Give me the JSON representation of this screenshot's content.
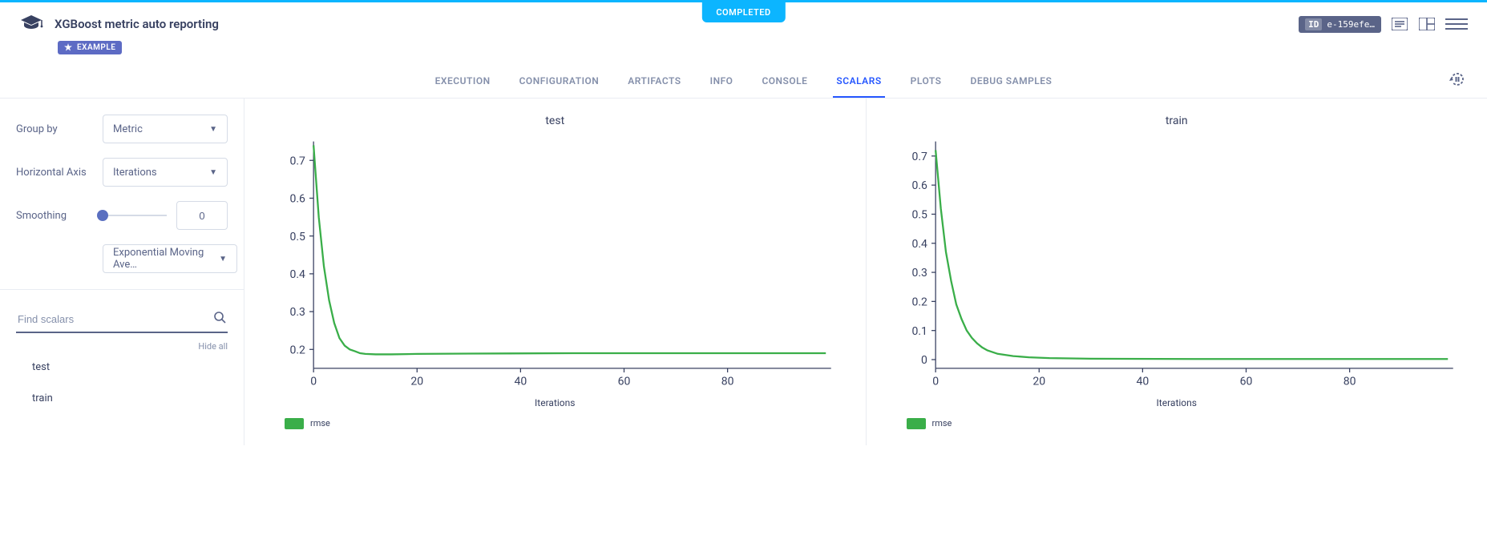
{
  "status": "COMPLETED",
  "title": "XGBoost metric auto reporting",
  "example_tag": "EXAMPLE",
  "experiment_id": "e-159efe…",
  "tabs": [
    {
      "label": "EXECUTION",
      "active": false
    },
    {
      "label": "CONFIGURATION",
      "active": false
    },
    {
      "label": "ARTIFACTS",
      "active": false
    },
    {
      "label": "INFO",
      "active": false
    },
    {
      "label": "CONSOLE",
      "active": false
    },
    {
      "label": "SCALARS",
      "active": true
    },
    {
      "label": "PLOTS",
      "active": false
    },
    {
      "label": "DEBUG SAMPLES",
      "active": false
    }
  ],
  "sidebar": {
    "group_by": {
      "label": "Group by",
      "value": "Metric"
    },
    "haxis": {
      "label": "Horizontal Axis",
      "value": "Iterations"
    },
    "smoothing": {
      "label": "Smoothing",
      "value": "0",
      "slider_pos": 0
    },
    "smooth_type": "Exponential Moving Ave…",
    "search_placeholder": "Find scalars",
    "hide_all": "Hide all",
    "items": [
      "test",
      "train"
    ]
  },
  "charts": [
    {
      "title": "test",
      "type": "line",
      "xlabel": "Iterations",
      "xlim": [
        0,
        100
      ],
      "xticks": [
        0,
        20,
        40,
        60,
        80
      ],
      "ylim": [
        0.15,
        0.75
      ],
      "yticks": [
        0.2,
        0.3,
        0.4,
        0.5,
        0.6,
        0.7
      ],
      "line_color": "#3aae49",
      "series_name": "rmse",
      "data": [
        [
          0,
          0.74
        ],
        [
          1,
          0.55
        ],
        [
          2,
          0.42
        ],
        [
          3,
          0.33
        ],
        [
          4,
          0.27
        ],
        [
          5,
          0.23
        ],
        [
          6,
          0.21
        ],
        [
          7,
          0.2
        ],
        [
          8,
          0.195
        ],
        [
          9,
          0.19
        ],
        [
          10,
          0.188
        ],
        [
          12,
          0.187
        ],
        [
          15,
          0.187
        ],
        [
          20,
          0.188
        ],
        [
          30,
          0.189
        ],
        [
          50,
          0.19
        ],
        [
          70,
          0.19
        ],
        [
          90,
          0.19
        ],
        [
          99,
          0.19
        ]
      ]
    },
    {
      "title": "train",
      "type": "line",
      "xlabel": "Iterations",
      "xlim": [
        0,
        100
      ],
      "xticks": [
        0,
        20,
        40,
        60,
        80
      ],
      "ylim": [
        -0.03,
        0.75
      ],
      "yticks": [
        0,
        0.1,
        0.2,
        0.3,
        0.4,
        0.5,
        0.6,
        0.7
      ],
      "line_color": "#3aae49",
      "series_name": "rmse",
      "data": [
        [
          0,
          0.72
        ],
        [
          1,
          0.52
        ],
        [
          2,
          0.37
        ],
        [
          3,
          0.27
        ],
        [
          4,
          0.19
        ],
        [
          5,
          0.14
        ],
        [
          6,
          0.1
        ],
        [
          7,
          0.075
        ],
        [
          8,
          0.056
        ],
        [
          9,
          0.042
        ],
        [
          10,
          0.032
        ],
        [
          12,
          0.02
        ],
        [
          15,
          0.012
        ],
        [
          18,
          0.008
        ],
        [
          22,
          0.005
        ],
        [
          30,
          0.003
        ],
        [
          50,
          0.002
        ],
        [
          70,
          0.002
        ],
        [
          90,
          0.002
        ],
        [
          99,
          0.002
        ]
      ]
    }
  ],
  "id_label": "ID"
}
